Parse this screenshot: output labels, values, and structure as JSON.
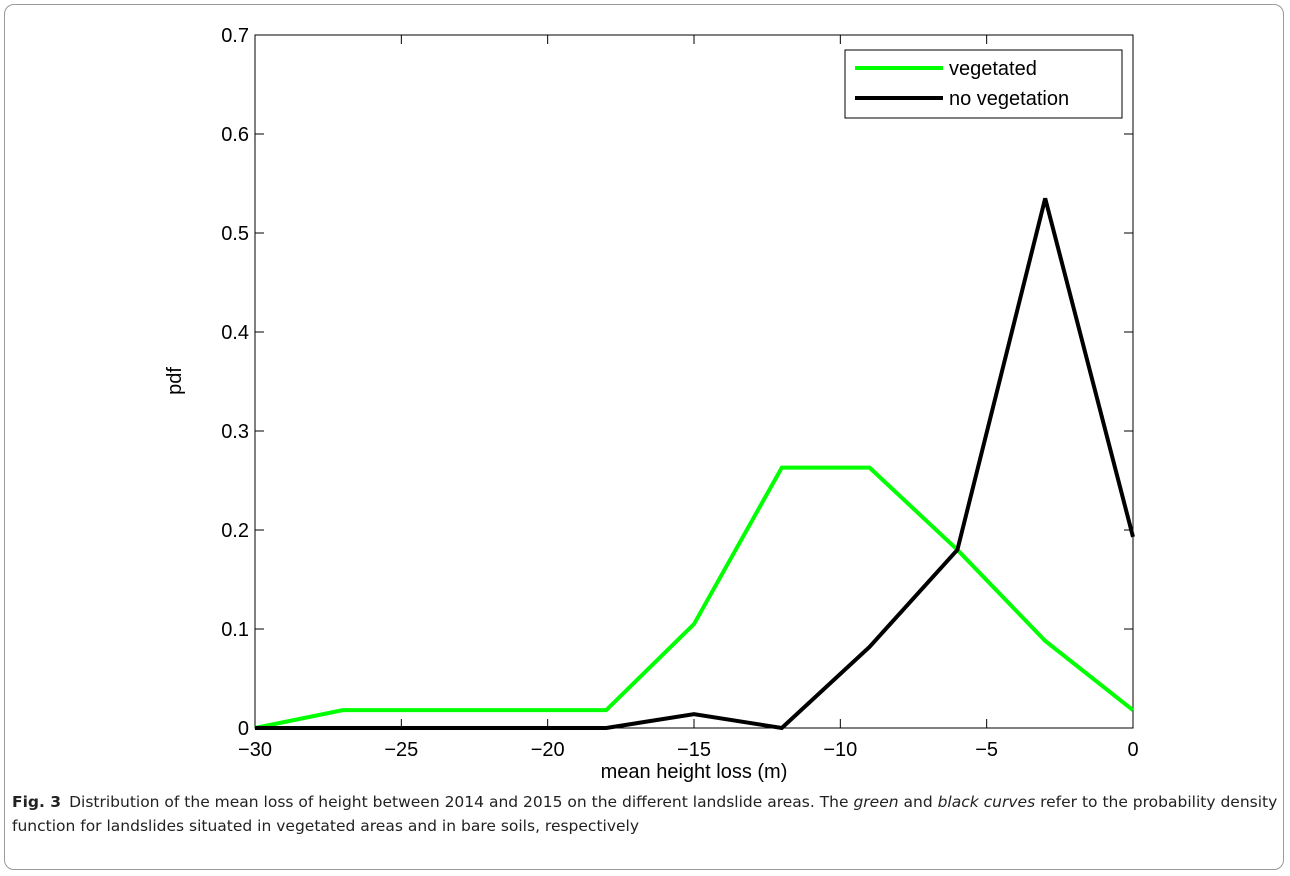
{
  "chart_data": {
    "type": "line",
    "x": [
      -30,
      -27,
      -24,
      -21,
      -18,
      -15,
      -12,
      -9,
      -6,
      -3,
      0
    ],
    "series": [
      {
        "name": "vegetated",
        "color": "#00ff00",
        "values": [
          0,
          0.018,
          0.018,
          0.018,
          0.018,
          0.105,
          0.263,
          0.263,
          0.18,
          0.088,
          0.018
        ]
      },
      {
        "name": "no vegetation",
        "color": "#000000",
        "values": [
          0,
          0,
          0,
          0,
          0,
          0.014,
          0,
          0.082,
          0.18,
          0.535,
          0.193
        ]
      }
    ],
    "x_label": "mean height loss (m)",
    "y_label": "pdf",
    "xlim": [
      -30,
      0
    ],
    "ylim": [
      0,
      0.7
    ],
    "xticks": [
      {
        "value": -30,
        "label": "−30"
      },
      {
        "value": -25,
        "label": "−25"
      },
      {
        "value": -20,
        "label": "−20"
      },
      {
        "value": -15,
        "label": "−15"
      },
      {
        "value": -10,
        "label": "−10"
      },
      {
        "value": -5,
        "label": "−5"
      },
      0
    ],
    "yticks": [
      0,
      0.1,
      0.2,
      0.3,
      0.4,
      0.5,
      0.6,
      0.7
    ],
    "legend": "upper right",
    "caption": {
      "label": "Fig. 3",
      "parts": [
        "Distribution of the mean loss of height between 2014 and 2015 on the different landslide areas. The ",
        "green",
        " and ",
        "black curves",
        " refer to the probability density function for landslides situated in vegetated areas and in bare soils, respectively"
      ]
    }
  }
}
